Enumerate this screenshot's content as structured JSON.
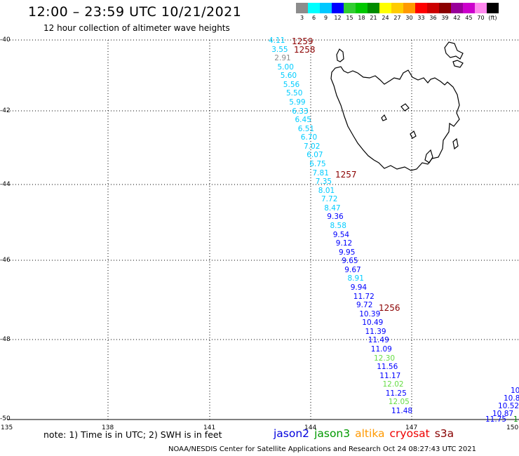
{
  "header": {
    "title": "12:00 – 23:59 UTC 10/21/2021",
    "subtitle": "12 hour collection of altimeter wave heights"
  },
  "legend": {
    "labels": [
      "3",
      "6",
      "9",
      "12",
      "15",
      "18",
      "21",
      "24",
      "27",
      "30",
      "33",
      "36",
      "39",
      "42",
      "45",
      "70",
      "(ft)"
    ],
    "colors": [
      "#8c8c8c",
      "#00ffff",
      "#00c8ff",
      "#0000ff",
      "#32cd32",
      "#00c800",
      "#008c00",
      "#ffff00",
      "#ffcc00",
      "#ff9900",
      "#ff0000",
      "#cc0000",
      "#8b0000",
      "#990099",
      "#cc00cc",
      "#ff88ee",
      "#000000"
    ]
  },
  "axes": {
    "lat_labels": [
      "-40",
      "-42",
      "-44",
      "-46",
      "-48",
      "-50"
    ],
    "lon_labels": [
      "135",
      "138",
      "141",
      "144",
      "147",
      "150"
    ]
  },
  "observations": [
    {
      "v": "4.11",
      "c": "#00ccff"
    },
    {
      "v": "3.55",
      "c": "#00ccff"
    },
    {
      "v": "2.91",
      "c": "#8c8c8c"
    },
    {
      "v": "5.00",
      "c": "#00ccff"
    },
    {
      "v": "5.60",
      "c": "#00ccff"
    },
    {
      "v": "5.56",
      "c": "#00ccff"
    },
    {
      "v": "5.50",
      "c": "#00ccff"
    },
    {
      "v": "5.99",
      "c": "#00ccff"
    },
    {
      "v": "6.33",
      "c": "#00ccff"
    },
    {
      "v": "6.45",
      "c": "#00ccff"
    },
    {
      "v": "6.51",
      "c": "#00ccff"
    },
    {
      "v": "6.70",
      "c": "#00ccff"
    },
    {
      "v": "7.02",
      "c": "#00ccff"
    },
    {
      "v": "6.07",
      "c": "#00ccff"
    },
    {
      "v": "6.75",
      "c": "#00ccff"
    },
    {
      "v": "7.81",
      "c": "#00ccff"
    },
    {
      "v": "7.35",
      "c": "#00ccff"
    },
    {
      "v": "8.01",
      "c": "#00ccff"
    },
    {
      "v": "7.72",
      "c": "#00ccff"
    },
    {
      "v": "8.47",
      "c": "#00ccff"
    },
    {
      "v": "9.36",
      "c": "#0000ff"
    },
    {
      "v": "8.58",
      "c": "#00ccff"
    },
    {
      "v": "9.54",
      "c": "#0000ff"
    },
    {
      "v": "9.12",
      "c": "#0000ff"
    },
    {
      "v": "9.95",
      "c": "#0000ff"
    },
    {
      "v": "9.65",
      "c": "#0000ff"
    },
    {
      "v": "9.67",
      "c": "#0000ff"
    },
    {
      "v": "8.91",
      "c": "#00ccff"
    },
    {
      "v": "9.94",
      "c": "#0000ff"
    },
    {
      "v": "11.72",
      "c": "#0000ff"
    },
    {
      "v": "9.72",
      "c": "#0000ff"
    },
    {
      "v": "10.39",
      "c": "#0000ff"
    },
    {
      "v": "10.49",
      "c": "#0000ff"
    },
    {
      "v": "11.39",
      "c": "#0000ff"
    },
    {
      "v": "11.49",
      "c": "#0000ff"
    },
    {
      "v": "11.09",
      "c": "#0000ff"
    },
    {
      "v": "12.30",
      "c": "#66dd44"
    },
    {
      "v": "11.56",
      "c": "#0000ff"
    },
    {
      "v": "11.17",
      "c": "#0000ff"
    },
    {
      "v": "12.02",
      "c": "#66dd44"
    },
    {
      "v": "11.25",
      "c": "#0000ff"
    },
    {
      "v": "12.05",
      "c": "#66dd44"
    },
    {
      "v": "11.48",
      "c": "#0000ff"
    }
  ],
  "edge_observations": [
    {
      "v": "10",
      "c": "#0000ff"
    },
    {
      "v": "10.8",
      "c": "#0000ff"
    },
    {
      "v": "10.52",
      "c": "#0000ff"
    },
    {
      "v": "10.87",
      "c": "#0000ff"
    },
    {
      "v": "11.75",
      "c": "#0000ff"
    },
    {
      "v": "1",
      "c": "#008c00"
    }
  ],
  "pass_labels": [
    "1259",
    "1258",
    "1257",
    "1256"
  ],
  "footer": {
    "note": "note:  1) Time is in UTC;  2) SWH is in feet",
    "satellites": [
      {
        "name": "jason2",
        "color": "#0000dd"
      },
      {
        "name": "jason3",
        "color": "#009900"
      },
      {
        "name": "altika",
        "color": "#ff9900"
      },
      {
        "name": "cryosat",
        "color": "#ee0000"
      },
      {
        "name": "s3a",
        "color": "#880000"
      }
    ],
    "credit": "NOAA/NESDIS Center for Satellite Applications and Research     Oct 24 08:27:43 UTC 2021"
  }
}
